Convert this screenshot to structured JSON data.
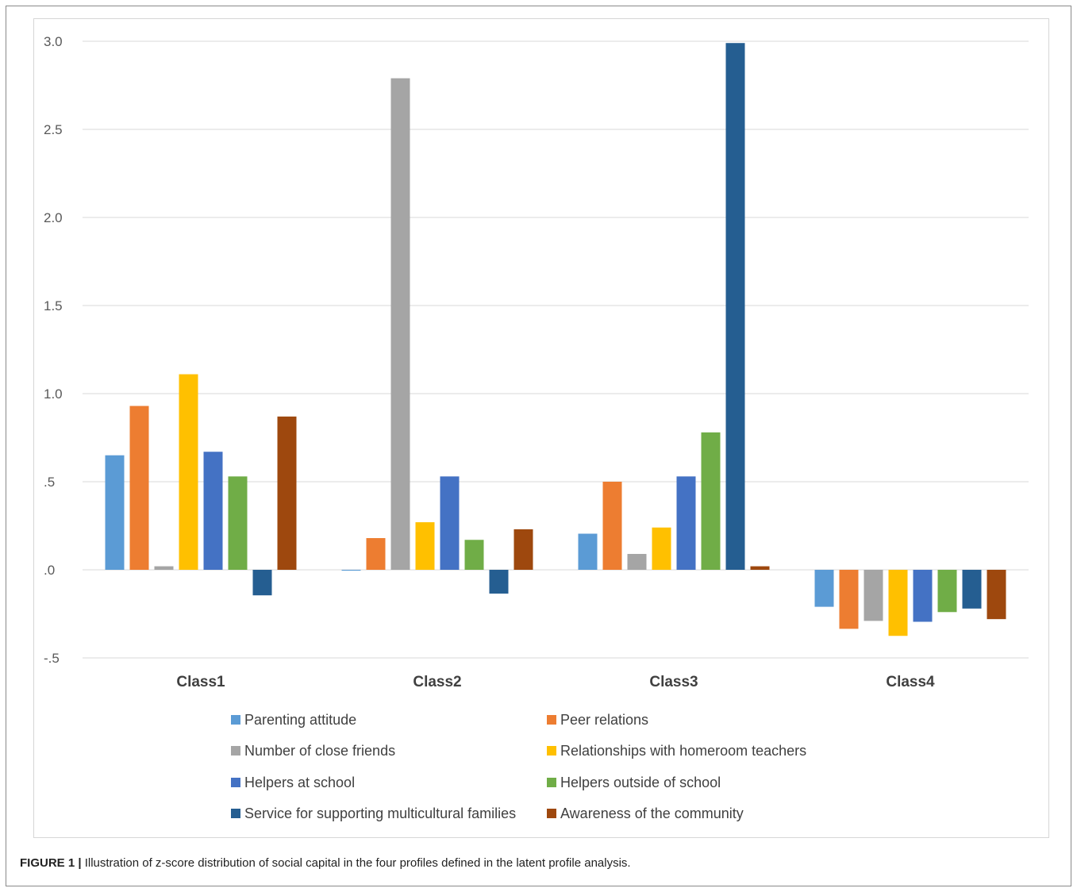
{
  "chart_data": {
    "type": "bar",
    "categories": [
      "Class1",
      "Class2",
      "Class3",
      "Class4"
    ],
    "ylim": [
      -0.5,
      3.0
    ],
    "yticks": [
      {
        "value": 3.0,
        "label": "3.0"
      },
      {
        "value": 2.5,
        "label": "2.5"
      },
      {
        "value": 2.0,
        "label": "2.0"
      },
      {
        "value": 1.5,
        "label": "1.5"
      },
      {
        "value": 1.0,
        "label": "1.0"
      },
      {
        "value": 0.5,
        "label": ".5"
      },
      {
        "value": 0.0,
        "label": ".0"
      },
      {
        "value": -0.5,
        "label": "-.5"
      }
    ],
    "grid": true,
    "legend_position": "bottom",
    "series": [
      {
        "name": "Parenting attitude",
        "color": "#5B9BD5",
        "values": [
          0.65,
          -0.005,
          0.205,
          -0.21
        ]
      },
      {
        "name": "Peer relations",
        "color": "#ED7D31",
        "values": [
          0.93,
          0.18,
          0.5,
          -0.335
        ]
      },
      {
        "name": "Number of close friends",
        "color": "#A5A5A5",
        "values": [
          0.02,
          2.79,
          0.09,
          -0.29
        ]
      },
      {
        "name": "Relationships with homeroom teachers",
        "color": "#FFC000",
        "values": [
          1.11,
          0.27,
          0.24,
          -0.375
        ]
      },
      {
        "name": "Helpers at school",
        "color": "#4472C4",
        "values": [
          0.67,
          0.53,
          0.53,
          -0.295
        ]
      },
      {
        "name": "Helpers outside of school",
        "color": "#70AD47",
        "values": [
          0.53,
          0.17,
          0.78,
          -0.24
        ]
      },
      {
        "name": "Service for supporting multicultural families",
        "color": "#255E91",
        "values": [
          -0.145,
          -0.135,
          2.99,
          -0.22
        ]
      },
      {
        "name": "Awareness of the community",
        "color": "#9E480E",
        "values": [
          0.87,
          0.23,
          0.02,
          -0.28
        ]
      }
    ]
  },
  "caption": {
    "label": "FIGURE 1 |",
    "text": "Illustration of z-score distribution of social capital in the four profiles defined in the latent profile analysis."
  }
}
